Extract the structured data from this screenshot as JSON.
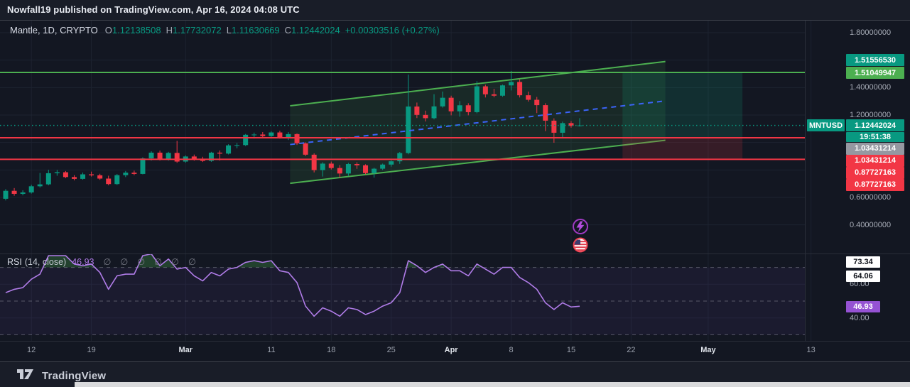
{
  "header": {
    "title": "Nowfall19 published on TradingView.com, Apr 16, 2024 04:08 UTC"
  },
  "legend": {
    "symbol": "Mantle, 1D, CRYPTO",
    "values": [
      {
        "label": "O",
        "value": "1.12138508"
      },
      {
        "label": "H",
        "value": "1.17732072"
      },
      {
        "label": "L",
        "value": "1.11630669"
      },
      {
        "label": "C",
        "value": "1.12442024"
      }
    ],
    "change": "+0.00303516 (+0.27%)"
  },
  "rsi_header": {
    "name": "RSI",
    "params": "(14, close)",
    "value": "46.93",
    "empty_glyph": "∅",
    "empty_count": 6
  },
  "price_axis": {
    "labels": [
      {
        "text": "1.80000000",
        "price": 1.8
      },
      {
        "text": "1.40000000",
        "price": 1.4
      },
      {
        "text": "1.20000000",
        "price": 1.2
      },
      {
        "text": "0.60000000",
        "price": 0.6
      },
      {
        "text": "0.40000000",
        "price": 0.4
      }
    ],
    "badges": [
      {
        "id": "level-high",
        "text": "1.51556530",
        "bg": "teal"
      },
      {
        "id": "level-green",
        "text": "1.51049947",
        "bg": "green"
      },
      {
        "id": "symbol",
        "text": "MNTUSD",
        "bg": "teal"
      },
      {
        "id": "last-price",
        "text": "1.12442024",
        "bg": "teal"
      },
      {
        "id": "countdown",
        "text": "19:51:38",
        "bg": "teal"
      },
      {
        "id": "entry-gray",
        "text": "1.03431214",
        "bg": "gray"
      },
      {
        "id": "entry-red",
        "text": "1.03431214",
        "bg": "red"
      },
      {
        "id": "stop-red-1",
        "text": "0.87727163",
        "bg": "red"
      },
      {
        "id": "stop-red-2",
        "text": "0.87727163",
        "bg": "red"
      }
    ]
  },
  "rsi_axis": {
    "labels": [
      {
        "text": "60.00",
        "rsi": 60
      },
      {
        "text": "40.00",
        "rsi": 40
      }
    ],
    "badges": [
      {
        "id": "rsi-line-1",
        "text": "73.34",
        "bg": "white"
      },
      {
        "id": "rsi-line-2",
        "text": "64.06",
        "bg": "white"
      },
      {
        "id": "rsi-value",
        "text": "46.93",
        "bg": "purple"
      }
    ]
  },
  "colors": {
    "up": "#089981",
    "down": "#f23645",
    "channel_line": "#4caf50",
    "channel_fill": "rgba(76,175,80,0.12)",
    "blue_dash": "#3b64f8",
    "level_green": "#4caf50",
    "level_red": "#f23645",
    "current_dotted": "#089981",
    "pos_green_fill": "rgba(18,160,120,0.18)",
    "pos_red_fill": "rgba(242,54,69,0.16)",
    "rsi_line": "#b07ce8",
    "rsi_band_fill": "rgba(128,82,210,0.08)",
    "rsi_overbought_fill": "rgba(76,175,80,0.28)",
    "band_dash": "#8b8f9b",
    "grid": "#1d2330",
    "badge_teal": "#089981",
    "badge_green": "#4caf50",
    "badge_gray": "#9598a1",
    "badge_red": "#f23645",
    "badge_white": "#ffffff",
    "badge_purple": "#9552d3",
    "event_purple_ring": "#a13bc4",
    "event_red_ring": "#ef4050"
  },
  "events": [
    {
      "name": "lightning-event-icon",
      "type": "alert"
    },
    {
      "name": "us-flag-event-icon",
      "type": "us-economic-event"
    }
  ],
  "footer": {
    "brand": "TradingView"
  },
  "chart_data": {
    "type": "candlestick",
    "symbol": "MNTUSD",
    "exchange": "CRYPTO",
    "interval": "1D",
    "title": "Mantle, 1D, CRYPTO",
    "first_candle_date": "2024-02-09",
    "last_candle_date": "2024-04-16",
    "ohlc_legend": {
      "open": 1.12138508,
      "high": 1.17732072,
      "low": 1.11630669,
      "close": 1.12442024,
      "change": 0.00303516,
      "change_pct": 0.27
    },
    "candles": [
      [
        0.59,
        0.66,
        0.578,
        0.648
      ],
      [
        0.648,
        0.668,
        0.612,
        0.626
      ],
      [
        0.626,
        0.652,
        0.615,
        0.636
      ],
      [
        0.636,
        0.692,
        0.628,
        0.681
      ],
      [
        0.681,
        0.778,
        0.672,
        0.695
      ],
      [
        0.695,
        0.801,
        0.688,
        0.776
      ],
      [
        0.776,
        0.8,
        0.758,
        0.783
      ],
      [
        0.783,
        0.792,
        0.74,
        0.748
      ],
      [
        0.748,
        0.762,
        0.724,
        0.735
      ],
      [
        0.735,
        0.781,
        0.729,
        0.768
      ],
      [
        0.768,
        0.788,
        0.752,
        0.761
      ],
      [
        0.761,
        0.772,
        0.728,
        0.737
      ],
      [
        0.737,
        0.758,
        0.688,
        0.697
      ],
      [
        0.697,
        0.77,
        0.691,
        0.762
      ],
      [
        0.762,
        0.792,
        0.748,
        0.78
      ],
      [
        0.78,
        0.795,
        0.762,
        0.771
      ],
      [
        0.771,
        0.892,
        0.768,
        0.884
      ],
      [
        0.884,
        0.936,
        0.868,
        0.926
      ],
      [
        0.926,
        0.941,
        0.869,
        0.877
      ],
      [
        0.877,
        0.932,
        0.868,
        0.924
      ],
      [
        0.924,
        1.012,
        0.852,
        0.861
      ],
      [
        0.861,
        0.906,
        0.853,
        0.898
      ],
      [
        0.898,
        0.912,
        0.868,
        0.877
      ],
      [
        0.877,
        0.896,
        0.858,
        0.866
      ],
      [
        0.866,
        0.932,
        0.859,
        0.926
      ],
      [
        0.926,
        0.942,
        0.868,
        0.919
      ],
      [
        0.919,
        0.987,
        0.913,
        0.979
      ],
      [
        0.979,
        0.996,
        0.958,
        0.981
      ],
      [
        0.981,
        1.062,
        0.974,
        1.056
      ],
      [
        1.056,
        1.072,
        1.028,
        1.058
      ],
      [
        1.058,
        1.076,
        1.038,
        1.047
      ],
      [
        1.047,
        1.082,
        1.034,
        1.073
      ],
      [
        1.073,
        1.086,
        1.028,
        1.039
      ],
      [
        1.039,
        1.076,
        1.018,
        1.061
      ],
      [
        1.061,
        1.066,
        0.982,
        0.994
      ],
      [
        0.994,
        1.001,
        0.901,
        0.911
      ],
      [
        0.911,
        0.921,
        0.782,
        0.799
      ],
      [
        0.799,
        0.856,
        0.752,
        0.846
      ],
      [
        0.846,
        0.861,
        0.803,
        0.814
      ],
      [
        0.814,
        0.836,
        0.744,
        0.774
      ],
      [
        0.774,
        0.851,
        0.758,
        0.843
      ],
      [
        0.843,
        0.856,
        0.808,
        0.834
      ],
      [
        0.834,
        0.841,
        0.768,
        0.777
      ],
      [
        0.777,
        0.816,
        0.744,
        0.809
      ],
      [
        0.809,
        0.846,
        0.799,
        0.839
      ],
      [
        0.839,
        0.871,
        0.824,
        0.863
      ],
      [
        0.863,
        0.931,
        0.844,
        0.923
      ],
      [
        0.923,
        1.495,
        0.914,
        1.262
      ],
      [
        1.262,
        1.291,
        1.178,
        1.201
      ],
      [
        1.201,
        1.232,
        1.153,
        1.177
      ],
      [
        1.177,
        1.352,
        1.168,
        1.263
      ],
      [
        1.263,
        1.371,
        1.254,
        1.326
      ],
      [
        1.326,
        1.341,
        1.198,
        1.227
      ],
      [
        1.227,
        1.302,
        1.188,
        1.271
      ],
      [
        1.271,
        1.286,
        1.198,
        1.221
      ],
      [
        1.221,
        1.446,
        1.213,
        1.409
      ],
      [
        1.409,
        1.421,
        1.328,
        1.351
      ],
      [
        1.351,
        1.391,
        1.329,
        1.341
      ],
      [
        1.341,
        1.422,
        1.333,
        1.416
      ],
      [
        1.416,
        1.521,
        1.379,
        1.441
      ],
      [
        1.441,
        1.461,
        1.328,
        1.344
      ],
      [
        1.344,
        1.371,
        1.298,
        1.311
      ],
      [
        1.311,
        1.332,
        1.214,
        1.272
      ],
      [
        1.272,
        1.286,
        1.083,
        1.159
      ],
      [
        1.159,
        1.176,
        0.998,
        1.071
      ],
      [
        1.071,
        1.152,
        1.033,
        1.141
      ],
      [
        1.141,
        1.156,
        1.108,
        1.121
      ],
      [
        1.12138508,
        1.17732072,
        1.11630669,
        1.12442024
      ]
    ],
    "rsi": {
      "type": "line",
      "label": "RSI (14, close)",
      "values": [
        55,
        57,
        58,
        63,
        66,
        77,
        77,
        77,
        72,
        71,
        72,
        67,
        57,
        65,
        66,
        66,
        77,
        78,
        71,
        75,
        69,
        70,
        65,
        62,
        67,
        65,
        69,
        70,
        73,
        74,
        73,
        74,
        68,
        67,
        61,
        47,
        41,
        46,
        44,
        41,
        46,
        45,
        42,
        44,
        47,
        49,
        55,
        74,
        71,
        67,
        70,
        72,
        68,
        68,
        65,
        72,
        69,
        66,
        70,
        70,
        64,
        61,
        57,
        49,
        45,
        49,
        46.5,
        46.93
      ],
      "bands": [
        70,
        50,
        30
      ],
      "gridlines": [
        60,
        40
      ],
      "last": 46.93
    },
    "levels": {
      "resistance_upper": 1.5155653,
      "resistance_green": 1.51049947,
      "support_red": [
        1.03431214,
        0.87727163
      ],
      "current_price": 1.12442024,
      "countdown": "19:51:38"
    },
    "channel": {
      "start_day": 33.2,
      "end_day": 77.0,
      "top_start": 1.267,
      "top_end": 1.59,
      "bottom_start": 0.703,
      "bottom_end": 1.016,
      "midline_dashed": true
    },
    "position_box": {
      "start_day": 72.0,
      "end_day": 86.0,
      "target": 1.51049947,
      "entry": 1.03431214,
      "stop": 0.87727163
    },
    "x_axis": {
      "ticks": [
        {
          "label": "12",
          "day": 3
        },
        {
          "label": "19",
          "day": 10
        },
        {
          "label": "Mar",
          "day": 21,
          "month": true
        },
        {
          "label": "11",
          "day": 31
        },
        {
          "label": "18",
          "day": 38
        },
        {
          "label": "25",
          "day": 45
        },
        {
          "label": "Apr",
          "day": 52,
          "month": true
        },
        {
          "label": "8",
          "day": 59
        },
        {
          "label": "15",
          "day": 66
        },
        {
          "label": "22",
          "day": 73
        },
        {
          "label": "May",
          "day": 82,
          "month": true
        },
        {
          "label": "13",
          "day": 94
        }
      ]
    },
    "y_axis": {
      "visible_labels": [
        1.8,
        1.4,
        1.2,
        0.6,
        0.4
      ],
      "gridline_step": 0.2,
      "grid": true
    }
  }
}
